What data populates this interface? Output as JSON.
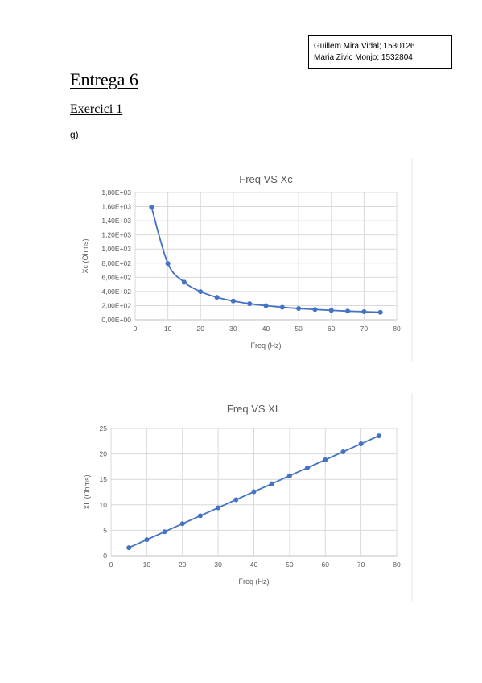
{
  "authors": [
    "Guillem Mira Vidal; 1530126",
    "Maria Zivic Monjo; 1532804"
  ],
  "title": "Entrega 6",
  "section": "Exercici 1",
  "item_label": "g)",
  "colors": {
    "series": "#4472c4",
    "grid": "#d9d9d9",
    "axis_text": "#595959",
    "title_text": "#595959"
  },
  "chart_data": [
    {
      "type": "line",
      "title": "Freq VS Xc",
      "xlabel": "Freq (Hz)",
      "ylabel": "Xc (Ohms)",
      "xlim": [
        0,
        80
      ],
      "ylim": [
        0,
        1800
      ],
      "xticks": [
        0,
        10,
        20,
        30,
        40,
        50,
        60,
        70,
        80
      ],
      "yticks": [
        0,
        200,
        400,
        600,
        800,
        1000,
        1200,
        1400,
        1600,
        1800
      ],
      "ytick_labels": [
        "0,00E+00",
        "2,00E+02",
        "4,00E+02",
        "6,00E+02",
        "8,00E+02",
        "1,00E+03",
        "1,20E+03",
        "1,40E+03",
        "1,60E+03",
        "1,80E+03"
      ],
      "grid": true,
      "smooth": true,
      "x": [
        5,
        10,
        15,
        20,
        25,
        30,
        35,
        40,
        45,
        50,
        55,
        60,
        65,
        70,
        75
      ],
      "y": [
        1592,
        796,
        531,
        398,
        318,
        265,
        227,
        199,
        177,
        159,
        145,
        133,
        122,
        114,
        106
      ]
    },
    {
      "type": "line",
      "title": "Freq VS XL",
      "xlabel": "Freq (Hz)",
      "ylabel": "XL (Ohms)",
      "xlim": [
        0,
        80
      ],
      "ylim": [
        0,
        25
      ],
      "xticks": [
        0,
        10,
        20,
        30,
        40,
        50,
        60,
        70,
        80
      ],
      "yticks": [
        0,
        5,
        10,
        15,
        20,
        25
      ],
      "ytick_labels": [
        "0",
        "5",
        "10",
        "15",
        "20",
        "25"
      ],
      "grid": true,
      "smooth": false,
      "x": [
        5,
        10,
        15,
        20,
        25,
        30,
        35,
        40,
        45,
        50,
        55,
        60,
        65,
        70,
        75
      ],
      "y": [
        1.57,
        3.14,
        4.71,
        6.28,
        7.85,
        9.42,
        11.0,
        12.57,
        14.14,
        15.71,
        17.28,
        18.85,
        20.42,
        21.99,
        23.56
      ]
    }
  ]
}
